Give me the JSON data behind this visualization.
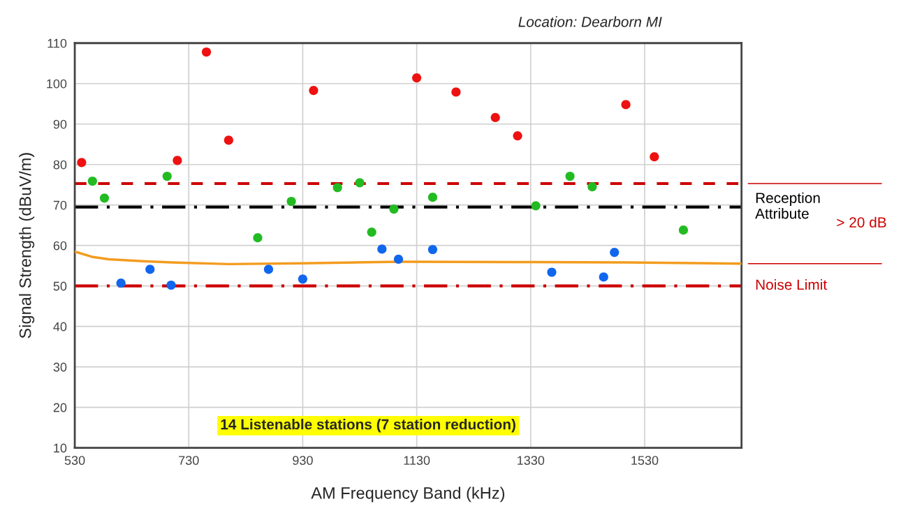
{
  "chart_data": {
    "type": "scatter",
    "xlabel": "AM Frequency Band (kHz)",
    "ylabel": "Signal Strength (dBuV/m)",
    "annotations": [
      "Location: Dearborn MI",
      "14 Listenable stations (7 station reduction)",
      "> 20 dB"
    ],
    "xlim": [
      530,
      1700
    ],
    "xticks": [
      530,
      730,
      930,
      1130,
      1330,
      1530
    ],
    "ylim": [
      10,
      110
    ],
    "yticks": [
      10,
      20,
      30,
      40,
      50,
      60,
      70,
      80,
      90,
      100,
      110
    ],
    "grid": true,
    "marker": "circle",
    "series": [
      {
        "color": "#ee1111",
        "x": [
          542,
          710,
          761,
          800,
          949,
          1130,
          1199,
          1268,
          1307,
          1497,
          1547
        ],
        "values": [
          80.5,
          81.0,
          107.8,
          86.0,
          98.3,
          101.4,
          97.9,
          91.6,
          87.1,
          94.8,
          81.9
        ]
      },
      {
        "color": "#22bb22",
        "x": [
          561,
          582,
          692,
          851,
          910,
          991,
          1030,
          1051,
          1090,
          1158,
          1339,
          1399,
          1438,
          1598
        ],
        "values": [
          75.9,
          71.7,
          77.1,
          61.9,
          70.9,
          74.3,
          75.5,
          63.3,
          69.0,
          71.9,
          69.8,
          77.1,
          74.5,
          63.8
        ]
      },
      {
        "color": "#1166ee",
        "x": [
          611,
          662,
          699,
          870,
          930,
          1069,
          1098,
          1158,
          1367,
          1458,
          1477
        ],
        "values": [
          50.7,
          54.1,
          50.2,
          54.1,
          51.7,
          59.1,
          56.6,
          59.0,
          53.4,
          52.2,
          58.3
        ]
      },
      {
        "type": "line",
        "color": "#f39c1f",
        "marker": "none",
        "x": [
          530,
          560,
          590,
          650,
          700,
          800,
          930,
          1100,
          1300,
          1500,
          1700
        ],
        "values": [
          58.5,
          57.2,
          56.6,
          56.1,
          55.8,
          55.4,
          55.6,
          56.0,
          55.9,
          55.8,
          55.5
        ]
      }
    ],
    "ref_lines": [
      {
        "axis": "y",
        "value": 75.3,
        "label": null,
        "color": "#cc0000",
        "line_style": "dashed"
      },
      {
        "axis": "y",
        "value": 69.5,
        "label": "Reception\nAttribute",
        "color": "#000000",
        "line_style": "dashdot"
      },
      {
        "axis": "y",
        "value": 50,
        "label": "Noise Limit",
        "color": "#cc0000",
        "line_style": "dashdot"
      }
    ]
  }
}
